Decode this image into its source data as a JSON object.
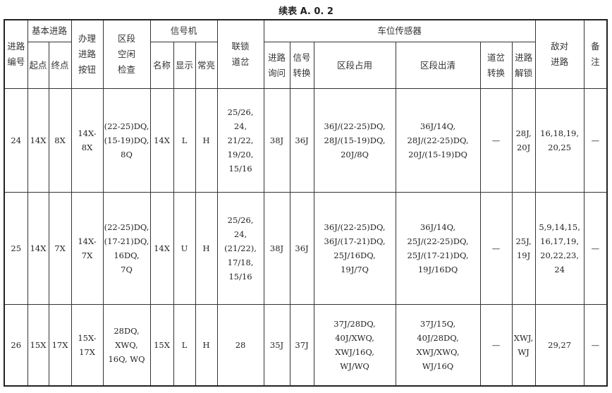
{
  "title": "续表 A. 0. 2",
  "header": {
    "route_no": [
      "进路",
      "编号"
    ],
    "basic_route": "基本进路",
    "start": "起点",
    "end": "终点",
    "button": [
      "办理",
      "进路",
      "按钮"
    ],
    "section_check": [
      "区段",
      "空闲",
      "检查"
    ],
    "signal": "信号机",
    "sig_name": "名称",
    "sig_display": "显示",
    "sig_steady": "常亮",
    "interlock": [
      "联锁",
      "道岔"
    ],
    "sensor": "车位传感器",
    "route_inquiry": [
      "进路",
      "询问"
    ],
    "signal_switch": [
      "信号",
      "转换"
    ],
    "occupy": "区段占用",
    "clear": "区段出清",
    "switch_convert": [
      "道岔",
      "转换"
    ],
    "route_release": [
      "进路",
      "解锁"
    ],
    "conflict": [
      "敌对",
      "进路"
    ],
    "remark": [
      "备",
      "注"
    ]
  },
  "rows": [
    {
      "no": [
        "24"
      ],
      "start": [
        "14X"
      ],
      "end": [
        "8X"
      ],
      "button": [
        "14X-",
        "8X"
      ],
      "check": [
        "(22-25)DQ,",
        "(15-19)DQ,",
        "8Q"
      ],
      "name": [
        "14X"
      ],
      "display": [
        "L"
      ],
      "steady": [
        "H"
      ],
      "interlock": [
        "25/26,",
        "24,",
        "21/22,",
        "19/20,",
        "15/16"
      ],
      "inquiry": [
        "38J"
      ],
      "sigswitch": [
        "36J"
      ],
      "occupy": [
        "36J/(22-25)DQ,",
        "28J/(15-19)DQ,",
        "20J/8Q"
      ],
      "clear": [
        "36J/14Q,",
        "28J/(22-25)DQ,",
        "20J/(15-19)DQ"
      ],
      "switchconv": [
        "—"
      ],
      "release": [
        "28J,",
        "20J"
      ],
      "conflict": [
        "16,18,19,",
        "20,25"
      ],
      "remark": [
        "—"
      ]
    },
    {
      "no": [
        "25"
      ],
      "start": [
        "14X"
      ],
      "end": [
        "7X"
      ],
      "button": [
        "14X-",
        "7X"
      ],
      "check": [
        "(22-25)DQ,",
        "(17-21)DQ,",
        "16DQ,",
        "7Q"
      ],
      "name": [
        "14X"
      ],
      "display": [
        "U"
      ],
      "steady": [
        "H"
      ],
      "interlock": [
        "25/26,",
        "24,",
        "(21/22),",
        "17/18,",
        "15/16"
      ],
      "inquiry": [
        "38J"
      ],
      "sigswitch": [
        "36J"
      ],
      "occupy": [
        "36J/(22-25)DQ,",
        "36J/(17-21)DQ,",
        "25J/16DQ,",
        "19J/7Q"
      ],
      "clear": [
        "36J/14Q,",
        "25J/(22-25)DQ,",
        "25J/(17-21)DQ,",
        "19J/16DQ"
      ],
      "switchconv": [
        "—"
      ],
      "release": [
        "25J,",
        "19J"
      ],
      "conflict": [
        "5,9,14,15,",
        "16,17,19,",
        "20,22,23,",
        "24"
      ],
      "remark": [
        "—"
      ]
    },
    {
      "no": [
        "26"
      ],
      "start": [
        "15X"
      ],
      "end": [
        "17X"
      ],
      "button": [
        "15X-",
        "17X"
      ],
      "check": [
        "28DQ,",
        "XWQ,",
        "16Q, WQ"
      ],
      "name": [
        "15X"
      ],
      "display": [
        "L"
      ],
      "steady": [
        "H"
      ],
      "interlock": [
        "28"
      ],
      "inquiry": [
        "35J"
      ],
      "sigswitch": [
        "37J"
      ],
      "occupy": [
        "37J/28DQ,",
        "40J/XWQ,",
        "XWJ/16Q,",
        "WJ/WQ"
      ],
      "clear": [
        "37J/15Q,",
        "40J/28DQ,",
        "XWJ/XWQ,",
        "WJ/16Q"
      ],
      "switchconv": [
        "—"
      ],
      "release": [
        "XWJ,",
        "WJ"
      ],
      "conflict": [
        "29,27"
      ],
      "remark": [
        "—"
      ]
    }
  ]
}
